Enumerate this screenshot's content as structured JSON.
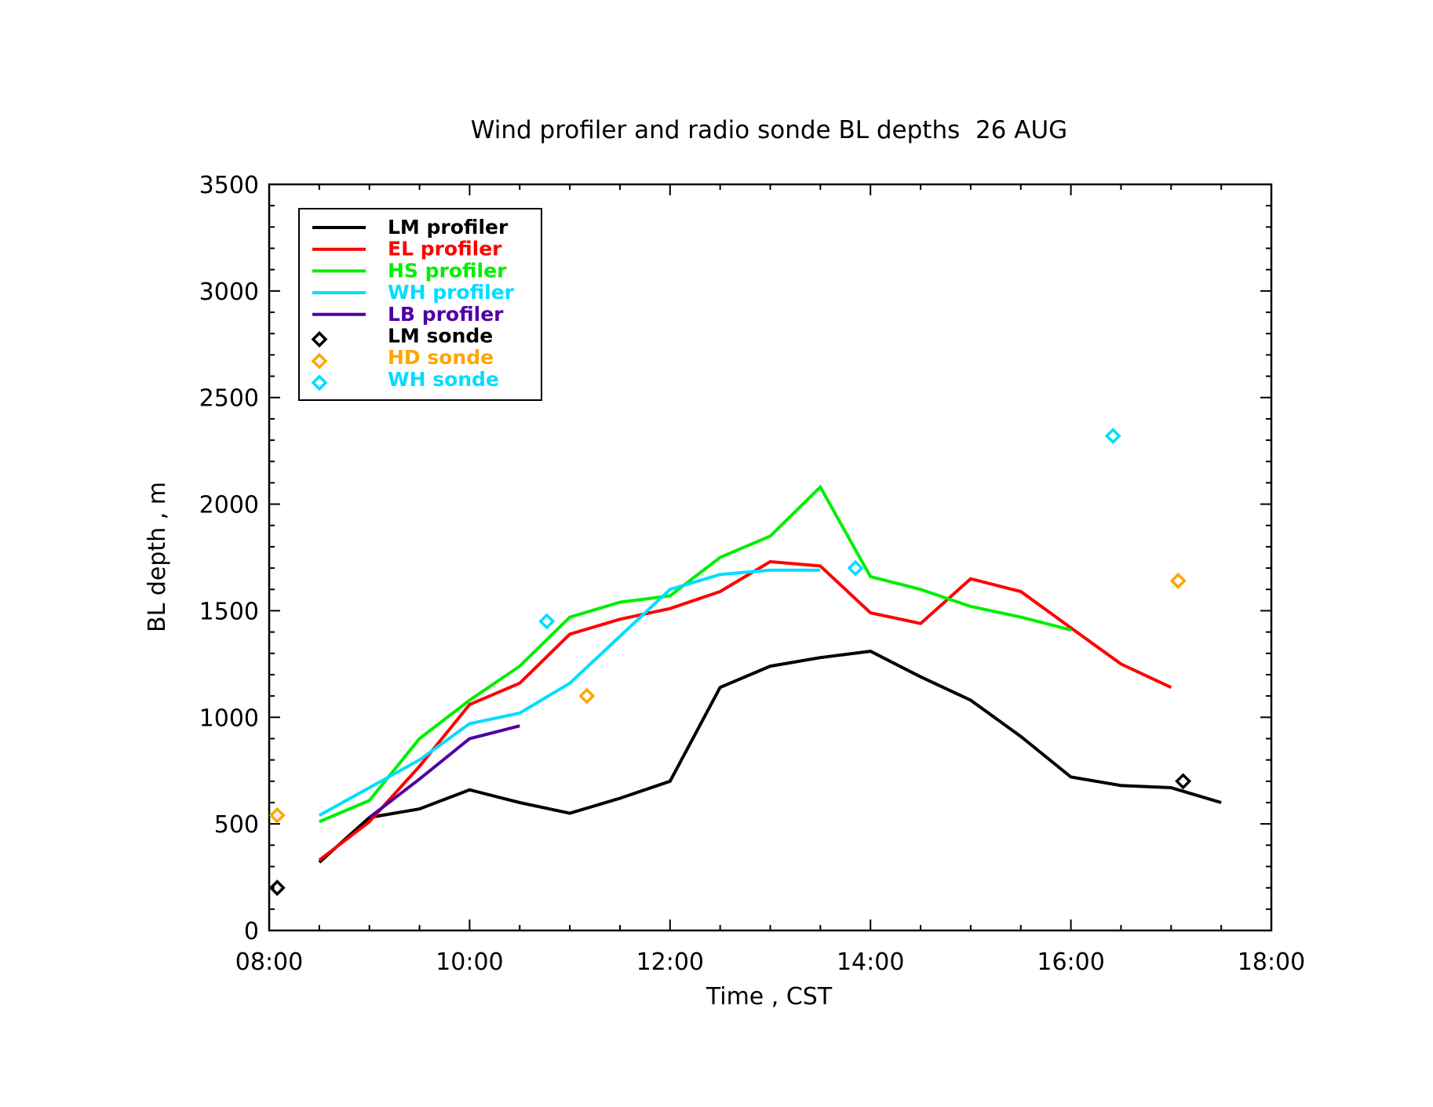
{
  "chart_data": {
    "type": "line",
    "title": "Wind profiler and radio sonde BL depths  26 AUG",
    "xlabel": "Time , CST",
    "ylabel": "BL depth , m",
    "xlim": [
      8.0,
      18.0
    ],
    "ylim": [
      0,
      3500
    ],
    "x_ticks": [
      8,
      10,
      12,
      14,
      16,
      18
    ],
    "x_tick_labels": [
      "08:00",
      "10:00",
      "12:00",
      "14:00",
      "16:00",
      "18:00"
    ],
    "y_ticks": [
      0,
      500,
      1000,
      1500,
      2000,
      2500,
      3000,
      3500
    ],
    "y_tick_labels": [
      "0",
      "500",
      "1000",
      "1500",
      "2000",
      "2500",
      "3000",
      "3500"
    ],
    "grid": false,
    "legend_position": "top-left",
    "series": [
      {
        "name": "LM profiler",
        "kind": "line",
        "color": "#000000",
        "x": [
          8.5,
          9.0,
          9.5,
          10.0,
          10.5,
          11.0,
          11.5,
          12.0,
          12.5,
          13.0,
          13.5,
          14.0,
          14.5,
          15.0,
          15.5,
          16.0,
          16.5,
          17.0,
          17.5
        ],
        "y": [
          320,
          530,
          570,
          660,
          600,
          550,
          620,
          700,
          1140,
          1240,
          1280,
          1310,
          1190,
          1080,
          910,
          720,
          680,
          670,
          600
        ]
      },
      {
        "name": "EL profiler",
        "kind": "line",
        "color": "#ff0000",
        "x": [
          8.5,
          9.0,
          9.5,
          10.0,
          10.5,
          11.0,
          11.5,
          12.0,
          12.5,
          13.0,
          13.5,
          14.0,
          14.5,
          15.0,
          15.5,
          16.0,
          16.5,
          17.0
        ],
        "y": [
          330,
          510,
          770,
          1060,
          1160,
          1390,
          1460,
          1510,
          1590,
          1730,
          1710,
          1490,
          1440,
          1650,
          1590,
          1420,
          1250,
          1140
        ]
      },
      {
        "name": "HS profiler",
        "kind": "line",
        "color": "#00ee00",
        "x": [
          8.5,
          9.0,
          9.5,
          10.0,
          10.5,
          11.0,
          11.5,
          12.0,
          12.5,
          13.0,
          13.5,
          14.0,
          14.5,
          15.0,
          15.5,
          16.0
        ],
        "y": [
          510,
          610,
          900,
          1080,
          1240,
          1470,
          1540,
          1570,
          1750,
          1850,
          2080,
          1660,
          1600,
          1520,
          1470,
          1410
        ]
      },
      {
        "name": "WH profiler",
        "kind": "line",
        "color": "#00ddff",
        "x": [
          8.5,
          9.0,
          9.5,
          10.0,
          10.5,
          11.0,
          11.5,
          12.0,
          12.5,
          13.0,
          13.5
        ],
        "y": [
          540,
          670,
          800,
          970,
          1020,
          1160,
          1380,
          1600,
          1670,
          1690,
          1690
        ]
      },
      {
        "name": "LB profiler",
        "kind": "line",
        "color": "#5000a0",
        "x": [
          9.0,
          9.5,
          10.0,
          10.5
        ],
        "y": [
          530,
          710,
          900,
          960
        ]
      },
      {
        "name": "LM sonde",
        "kind": "marker",
        "color": "#000000",
        "x": [
          8.08,
          17.12
        ],
        "y": [
          200,
          700
        ]
      },
      {
        "name": "HD sonde",
        "kind": "marker",
        "color": "#ffa500",
        "x": [
          8.08,
          11.17,
          17.07
        ],
        "y": [
          540,
          1100,
          1640
        ]
      },
      {
        "name": "WH sonde",
        "kind": "marker",
        "color": "#00ddff",
        "x": [
          10.77,
          13.85,
          16.42
        ],
        "y": [
          1450,
          1700,
          2320
        ]
      }
    ]
  }
}
